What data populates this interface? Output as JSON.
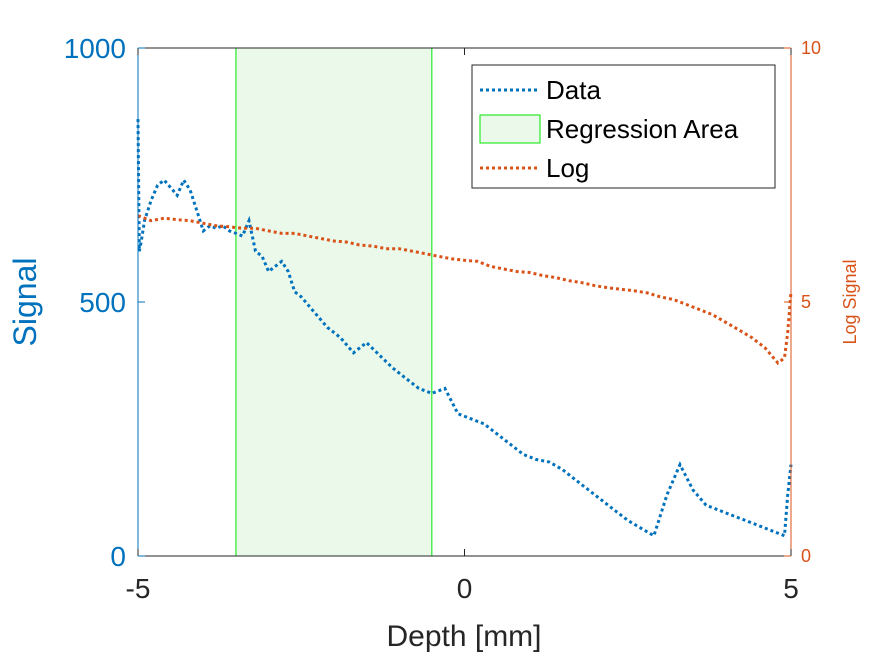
{
  "chart_data": {
    "type": "line",
    "title": "",
    "xlabel": "Depth [mm]",
    "ylabel": "Signal",
    "y2label": "Log Signal",
    "xlim": [
      -5,
      5
    ],
    "ylim": [
      0,
      1000
    ],
    "y2lim": [
      0,
      10
    ],
    "xticks": [
      -5,
      0,
      5
    ],
    "yticks": [
      0,
      500,
      1000
    ],
    "y2ticks": [
      0,
      5,
      10
    ],
    "grid": false,
    "legend_position": "top-right",
    "colors": {
      "data": "#0072BD",
      "log": "#D95319",
      "region_fill": "#EAF9EA",
      "region_edge": "#00E600",
      "axis_left": "#0072BD",
      "axis_right": "#D95319",
      "axis_bottom": "#262626"
    },
    "regression_area": {
      "label": "Regression Area",
      "x_range": [
        -3.5,
        -0.5
      ]
    },
    "series": [
      {
        "name": "Data",
        "axis": "left",
        "x": [
          -5.0,
          -4.98,
          -4.95,
          -4.9,
          -4.8,
          -4.7,
          -4.6,
          -4.5,
          -4.4,
          -4.3,
          -4.2,
          -4.15,
          -4.1,
          -4.0,
          -3.9,
          -3.8,
          -3.7,
          -3.6,
          -3.5,
          -3.4,
          -3.3,
          -3.2,
          -3.1,
          -3.0,
          -2.9,
          -2.8,
          -2.7,
          -2.6,
          -2.5,
          -2.3,
          -2.1,
          -1.9,
          -1.7,
          -1.5,
          -1.3,
          -1.1,
          -0.9,
          -0.7,
          -0.5,
          -0.3,
          -0.1,
          0.1,
          0.3,
          0.5,
          0.7,
          0.9,
          1.1,
          1.3,
          1.5,
          1.7,
          1.9,
          2.1,
          2.3,
          2.5,
          2.7,
          2.9,
          3.1,
          3.3,
          3.5,
          3.7,
          3.9,
          4.1,
          4.3,
          4.5,
          4.7,
          4.9,
          4.95,
          5.0
        ],
        "y": [
          860,
          600,
          620,
          660,
          700,
          730,
          740,
          725,
          710,
          740,
          720,
          700,
          680,
          640,
          650,
          645,
          650,
          640,
          635,
          630,
          660,
          600,
          590,
          560,
          570,
          580,
          560,
          520,
          510,
          480,
          450,
          430,
          400,
          420,
          395,
          370,
          350,
          330,
          320,
          330,
          280,
          270,
          260,
          240,
          220,
          200,
          190,
          185,
          170,
          150,
          130,
          110,
          90,
          70,
          55,
          40,
          120,
          180,
          130,
          100,
          90,
          80,
          70,
          60,
          50,
          40,
          120,
          180
        ]
      },
      {
        "name": "Log",
        "axis": "right",
        "x": [
          -5.0,
          -4.8,
          -4.6,
          -4.4,
          -4.2,
          -4.0,
          -3.8,
          -3.6,
          -3.4,
          -3.2,
          -3.0,
          -2.8,
          -2.6,
          -2.4,
          -2.2,
          -2.0,
          -1.8,
          -1.6,
          -1.4,
          -1.2,
          -1.0,
          -0.8,
          -0.6,
          -0.4,
          -0.2,
          0.0,
          0.2,
          0.4,
          0.6,
          0.8,
          1.0,
          1.2,
          1.4,
          1.6,
          1.8,
          2.0,
          2.2,
          2.4,
          2.6,
          2.8,
          3.0,
          3.2,
          3.4,
          3.6,
          3.8,
          4.0,
          4.2,
          4.4,
          4.6,
          4.8,
          4.9,
          4.95,
          5.0
        ],
        "y": [
          6.7,
          6.6,
          6.65,
          6.62,
          6.6,
          6.55,
          6.5,
          6.48,
          6.45,
          6.45,
          6.4,
          6.35,
          6.35,
          6.3,
          6.25,
          6.2,
          6.18,
          6.12,
          6.1,
          6.05,
          6.05,
          6.0,
          5.95,
          5.9,
          5.85,
          5.82,
          5.8,
          5.7,
          5.65,
          5.6,
          5.58,
          5.52,
          5.48,
          5.42,
          5.38,
          5.32,
          5.28,
          5.25,
          5.22,
          5.18,
          5.1,
          5.05,
          4.95,
          4.85,
          4.75,
          4.6,
          4.45,
          4.3,
          4.1,
          3.8,
          3.9,
          4.4,
          5.2
        ]
      }
    ]
  }
}
